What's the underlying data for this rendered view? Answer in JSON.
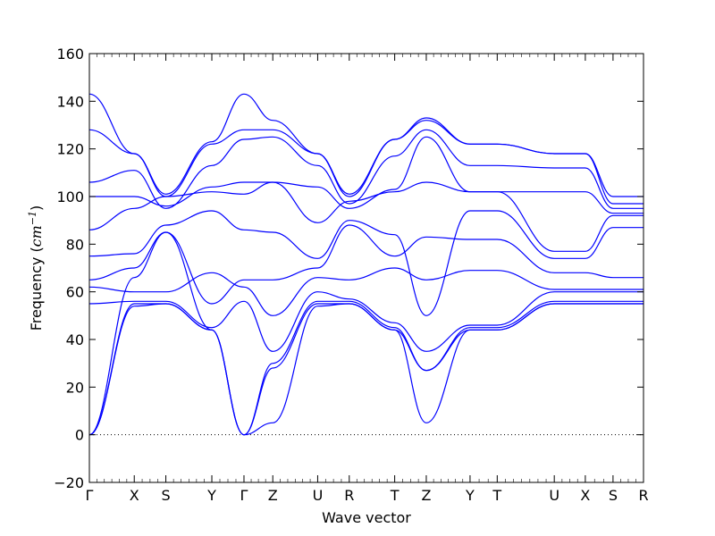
{
  "chart_data": {
    "type": "line",
    "title": "",
    "xlabel": "Wave vector",
    "ylabel_text": "Frequency (",
    "ylabel_unit": "cm",
    "ylabel_exp": "−1",
    "ylabel_close": ")",
    "ylim": [
      -20,
      160
    ],
    "xlim": [
      0,
      1
    ],
    "grid": false,
    "zero_line": true,
    "line_color": "#0000ff",
    "y_ticks": [
      -20,
      0,
      20,
      40,
      60,
      80,
      100,
      120,
      140,
      160
    ],
    "y_tick_labels": [
      "−20",
      "0",
      "20",
      "40",
      "60",
      "80",
      "100",
      "120",
      "140",
      "160"
    ],
    "x_tick_labels": [
      "Γ",
      "X",
      "S",
      "Y",
      "Γ",
      "Z",
      "U",
      "R",
      "T",
      "Z",
      "Y",
      "T",
      "U",
      "X",
      "S",
      "R"
    ],
    "x_tick_positions": [
      0,
      0.081,
      0.138,
      0.221,
      0.279,
      0.331,
      0.412,
      0.469,
      0.551,
      0.608,
      0.687,
      0.736,
      0.839,
      0.895,
      0.945,
      1.0
    ],
    "branch_values": [
      [
        [
          0,
          0
        ],
        [
          0.081,
          54
        ],
        [
          0.138,
          55
        ],
        [
          0.221,
          44
        ],
        [
          0.279,
          0
        ],
        [
          0.331,
          5
        ],
        [
          0.412,
          54
        ],
        [
          0.469,
          55
        ],
        [
          0.551,
          44
        ],
        [
          0.608,
          5
        ],
        [
          0.687,
          44
        ],
        [
          0.736,
          44
        ],
        [
          0.839,
          55
        ],
        [
          0.895,
          55
        ],
        [
          0.945,
          55
        ],
        [
          1.0,
          55
        ]
      ],
      [
        [
          0,
          0
        ],
        [
          0.081,
          55
        ],
        [
          0.138,
          55
        ],
        [
          0.221,
          44
        ],
        [
          0.279,
          0
        ],
        [
          0.331,
          28
        ],
        [
          0.412,
          55
        ],
        [
          0.469,
          55
        ],
        [
          0.551,
          44
        ],
        [
          0.608,
          27
        ],
        [
          0.687,
          44
        ],
        [
          0.736,
          44
        ],
        [
          0.839,
          55
        ],
        [
          0.895,
          55
        ],
        [
          0.945,
          55
        ],
        [
          1.0,
          55
        ]
      ],
      [
        [
          0,
          0
        ],
        [
          0.081,
          66
        ],
        [
          0.138,
          85
        ],
        [
          0.221,
          44
        ],
        [
          0.279,
          0
        ],
        [
          0.331,
          30
        ],
        [
          0.412,
          56
        ],
        [
          0.469,
          56
        ],
        [
          0.551,
          45
        ],
        [
          0.608,
          27
        ],
        [
          0.687,
          45
        ],
        [
          0.736,
          45
        ],
        [
          0.839,
          56
        ],
        [
          0.895,
          56
        ],
        [
          0.945,
          56
        ],
        [
          1.0,
          56
        ]
      ],
      [
        [
          0,
          55
        ],
        [
          0.081,
          56
        ],
        [
          0.138,
          56
        ],
        [
          0.221,
          45
        ],
        [
          0.279,
          56
        ],
        [
          0.331,
          35
        ],
        [
          0.412,
          60
        ],
        [
          0.469,
          57
        ],
        [
          0.551,
          47
        ],
        [
          0.608,
          35
        ],
        [
          0.687,
          46
        ],
        [
          0.736,
          46
        ],
        [
          0.839,
          60
        ],
        [
          0.895,
          60
        ],
        [
          0.945,
          60
        ],
        [
          1.0,
          60
        ]
      ],
      [
        [
          0,
          62
        ],
        [
          0.081,
          60
        ],
        [
          0.138,
          60
        ],
        [
          0.221,
          68
        ],
        [
          0.279,
          62
        ],
        [
          0.331,
          50
        ],
        [
          0.412,
          66
        ],
        [
          0.469,
          65
        ],
        [
          0.551,
          70
        ],
        [
          0.608,
          65
        ],
        [
          0.687,
          69
        ],
        [
          0.736,
          69
        ],
        [
          0.839,
          61
        ],
        [
          0.895,
          61
        ],
        [
          0.945,
          61
        ],
        [
          1.0,
          61
        ]
      ],
      [
        [
          0,
          65
        ],
        [
          0.081,
          70
        ],
        [
          0.138,
          85
        ],
        [
          0.221,
          55
        ],
        [
          0.279,
          65
        ],
        [
          0.331,
          65
        ],
        [
          0.412,
          70
        ],
        [
          0.469,
          88
        ],
        [
          0.551,
          75
        ],
        [
          0.608,
          83
        ],
        [
          0.687,
          82
        ],
        [
          0.736,
          82
        ],
        [
          0.839,
          68
        ],
        [
          0.895,
          68
        ],
        [
          0.945,
          66
        ],
        [
          1.0,
          66
        ]
      ],
      [
        [
          0,
          75
        ],
        [
          0.081,
          76
        ],
        [
          0.138,
          88
        ],
        [
          0.221,
          94
        ],
        [
          0.279,
          86
        ],
        [
          0.331,
          85
        ],
        [
          0.412,
          74
        ],
        [
          0.469,
          90
        ],
        [
          0.551,
          84
        ],
        [
          0.608,
          50
        ],
        [
          0.687,
          94
        ],
        [
          0.736,
          94
        ],
        [
          0.839,
          74
        ],
        [
          0.895,
          74
        ],
        [
          0.945,
          87
        ],
        [
          1.0,
          87
        ]
      ],
      [
        [
          0,
          86
        ],
        [
          0.081,
          95
        ],
        [
          0.138,
          100
        ],
        [
          0.221,
          102
        ],
        [
          0.279,
          101
        ],
        [
          0.331,
          106
        ],
        [
          0.412,
          89
        ],
        [
          0.469,
          98
        ],
        [
          0.551,
          102
        ],
        [
          0.608,
          106
        ],
        [
          0.687,
          102
        ],
        [
          0.736,
          102
        ],
        [
          0.839,
          77
        ],
        [
          0.895,
          77
        ],
        [
          0.945,
          92
        ],
        [
          1.0,
          92
        ]
      ],
      [
        [
          0,
          100
        ],
        [
          0.081,
          100
        ],
        [
          0.138,
          96
        ],
        [
          0.221,
          104
        ],
        [
          0.279,
          106
        ],
        [
          0.331,
          106
        ],
        [
          0.412,
          104
        ],
        [
          0.469,
          95
        ],
        [
          0.551,
          103
        ],
        [
          0.608,
          125
        ],
        [
          0.687,
          102
        ],
        [
          0.736,
          102
        ],
        [
          0.839,
          102
        ],
        [
          0.895,
          102
        ],
        [
          0.945,
          93
        ],
        [
          1.0,
          93
        ]
      ],
      [
        [
          0,
          106
        ],
        [
          0.081,
          111
        ],
        [
          0.138,
          95
        ],
        [
          0.221,
          113
        ],
        [
          0.279,
          124
        ],
        [
          0.331,
          125
        ],
        [
          0.412,
          113
        ],
        [
          0.469,
          97
        ],
        [
          0.551,
          117
        ],
        [
          0.608,
          128
        ],
        [
          0.687,
          113
        ],
        [
          0.736,
          113
        ],
        [
          0.839,
          112
        ],
        [
          0.895,
          112
        ],
        [
          0.945,
          95
        ],
        [
          1.0,
          95
        ]
      ],
      [
        [
          0,
          128
        ],
        [
          0.081,
          118
        ],
        [
          0.138,
          100
        ],
        [
          0.221,
          122
        ],
        [
          0.279,
          128
        ],
        [
          0.331,
          128
        ],
        [
          0.412,
          118
        ],
        [
          0.469,
          100
        ],
        [
          0.551,
          124
        ],
        [
          0.608,
          132
        ],
        [
          0.687,
          122
        ],
        [
          0.736,
          122
        ],
        [
          0.839,
          118
        ],
        [
          0.895,
          118
        ],
        [
          0.945,
          97
        ],
        [
          1.0,
          97
        ]
      ],
      [
        [
          0,
          143
        ],
        [
          0.081,
          118
        ],
        [
          0.138,
          101
        ],
        [
          0.221,
          123
        ],
        [
          0.279,
          143
        ],
        [
          0.331,
          132
        ],
        [
          0.412,
          118
        ],
        [
          0.469,
          101
        ],
        [
          0.551,
          124
        ],
        [
          0.608,
          133
        ],
        [
          0.687,
          122
        ],
        [
          0.736,
          122
        ],
        [
          0.839,
          118
        ],
        [
          0.895,
          118
        ],
        [
          0.945,
          100
        ],
        [
          1.0,
          100
        ]
      ]
    ]
  }
}
